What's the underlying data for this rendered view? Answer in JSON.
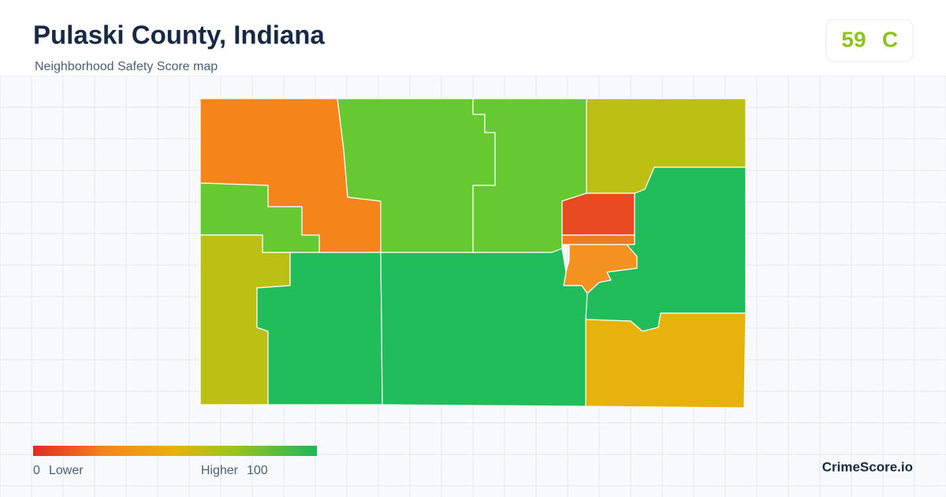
{
  "header": {
    "title": "Pulaski County, Indiana",
    "subtitle": "Neighborhood Safety Score map"
  },
  "badge": {
    "score": "59",
    "grade": "C"
  },
  "legend": {
    "min": "0",
    "min_label": "Lower",
    "max_label": "Higher",
    "max": "100"
  },
  "brand": "CrimeScore.io"
}
